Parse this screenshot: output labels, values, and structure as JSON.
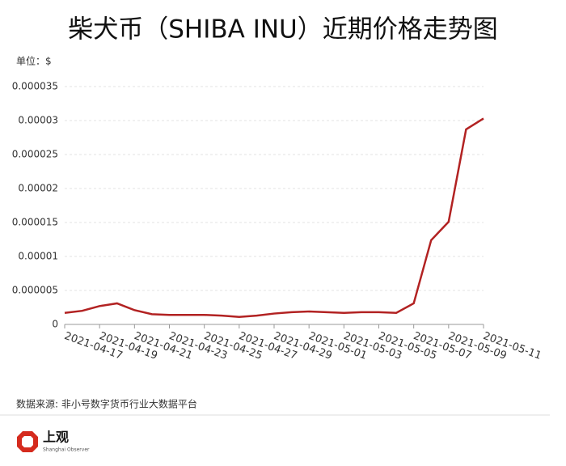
{
  "chart_data": {
    "type": "line",
    "title": "柴犬币（SHIBA INU）近期价格走势图",
    "y_label": "单位：$",
    "categories": [
      "2021-04-17",
      null,
      "2021-04-19",
      null,
      "2021-04-21",
      null,
      "2021-04-23",
      null,
      "2021-04-25",
      null,
      "2021-04-27",
      null,
      "2021-04-29",
      null,
      "2021-05-01",
      null,
      "2021-05-03",
      null,
      "2021-05-05",
      null,
      "2021-05-07",
      null,
      "2021-05-09",
      null,
      "2021-05-11"
    ],
    "series": [
      {
        "name": "SHIBA INU",
        "color": "#b22222",
        "values": [
          1.7e-06,
          2e-06,
          2.7e-06,
          3.1e-06,
          2.1e-06,
          1.5e-06,
          1.4e-06,
          1.4e-06,
          1.4e-06,
          1.3e-06,
          1.1e-06,
          1.3e-06,
          1.6e-06,
          1.8e-06,
          1.9e-06,
          1.8e-06,
          1.7e-06,
          1.8e-06,
          1.8e-06,
          1.7e-06,
          3.1e-06,
          1.24e-05,
          1.51e-05,
          2.87e-05,
          3.03e-05
        ]
      }
    ],
    "ylim": [
      0,
      3.5e-05
    ],
    "yticks": [
      0,
      5e-06,
      1e-05,
      1.5e-05,
      2e-05,
      2.5e-05,
      3e-05,
      3.5e-05
    ],
    "grid": true
  },
  "footer": {
    "source": "数据来源: 非小号数字货币行业大数据平台",
    "logo": "上观",
    "logo_sub": "Shanghai Observer"
  }
}
